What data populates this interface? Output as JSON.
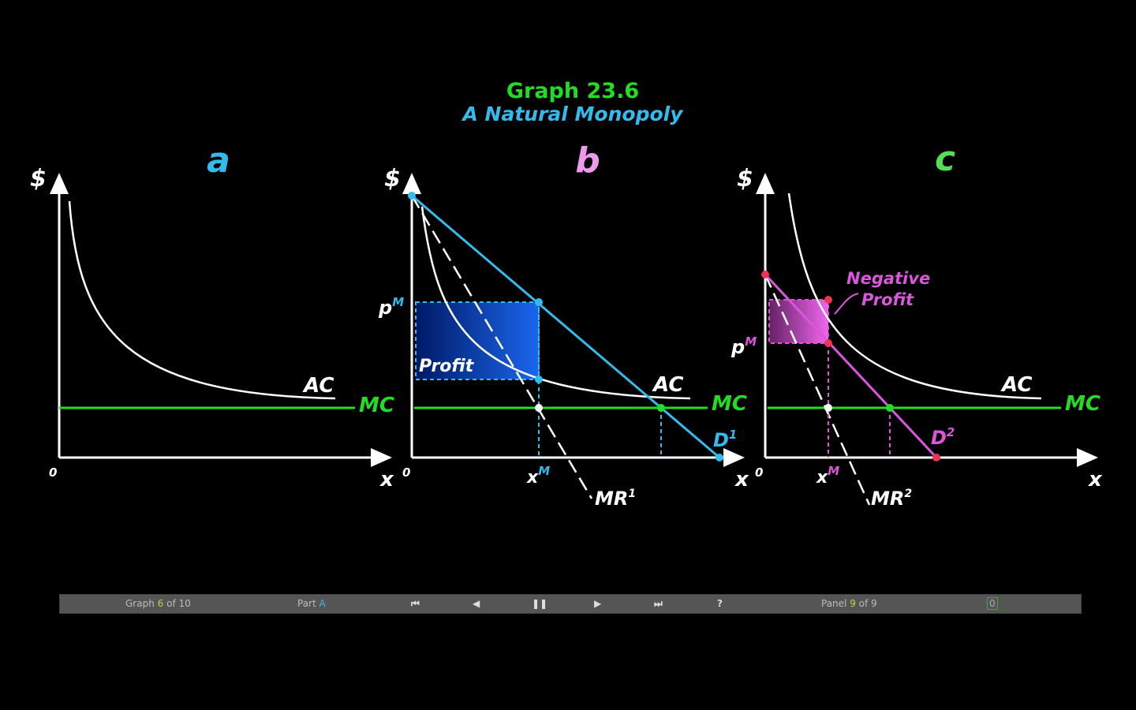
{
  "title": "Graph 23.6",
  "subtitle": "A Natural Monopoly",
  "colors": {
    "green": "#22dd22",
    "cyan": "#33bbee",
    "magenta": "#dd55dd",
    "white": "#ffffff"
  },
  "panels": {
    "a": {
      "letter": "a",
      "y_axis": "$",
      "x_axis": "x",
      "origin": "0",
      "ac": "AC",
      "mc": "MC"
    },
    "b": {
      "letter": "b",
      "y_axis": "$",
      "x_axis": "x",
      "origin": "0",
      "ac": "AC",
      "mc": "MC",
      "price": "p",
      "price_sup": "M",
      "qty": "x",
      "qty_sup": "M",
      "profit": "Profit",
      "demand": "D",
      "demand_sup": "1",
      "mr": "MR",
      "mr_sup": "1"
    },
    "c": {
      "letter": "c",
      "y_axis": "$",
      "x_axis": "x",
      "origin": "0",
      "ac": "AC",
      "mc": "MC",
      "price": "p",
      "price_sup": "M",
      "qty": "x",
      "qty_sup": "M",
      "neg_profit_1": "Negative",
      "neg_profit_2": "Profit",
      "demand": "D",
      "demand_sup": "2",
      "mr": "MR",
      "mr_sup": "2"
    }
  },
  "controls": {
    "graph_prefix": "Graph",
    "graph_num": "6",
    "graph_suffix": "of 10",
    "part_prefix": "Part",
    "part": "A",
    "first": "⏮",
    "prev": "◀",
    "pause": "❚❚",
    "next": "▶",
    "last": "⏭",
    "help": "?",
    "panel_prefix": "Panel",
    "panel_num": "9",
    "panel_suffix": "of 9",
    "toggle": "0"
  }
}
